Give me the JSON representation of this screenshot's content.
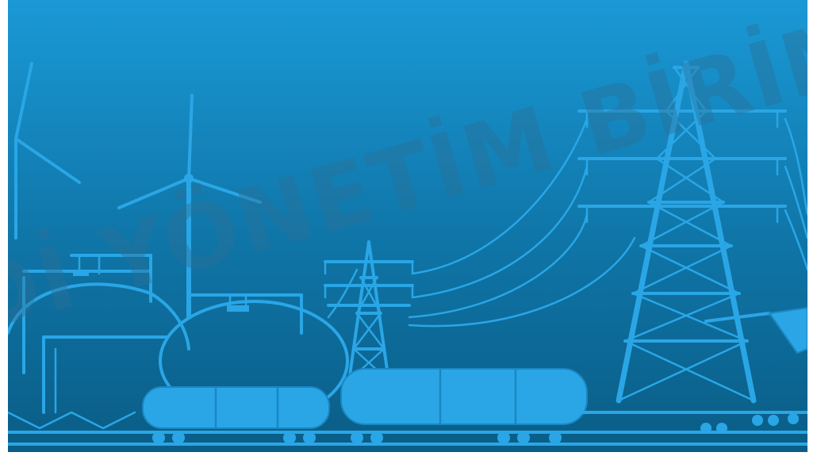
{
  "watermark": {
    "text": "Dİ YÖNETİM BİRİM"
  },
  "palette": {
    "background_top": "#1a99d6",
    "background_bottom": "#0a5d86",
    "line_art": "#2aa6e6",
    "watermark": "#2b6f95"
  }
}
